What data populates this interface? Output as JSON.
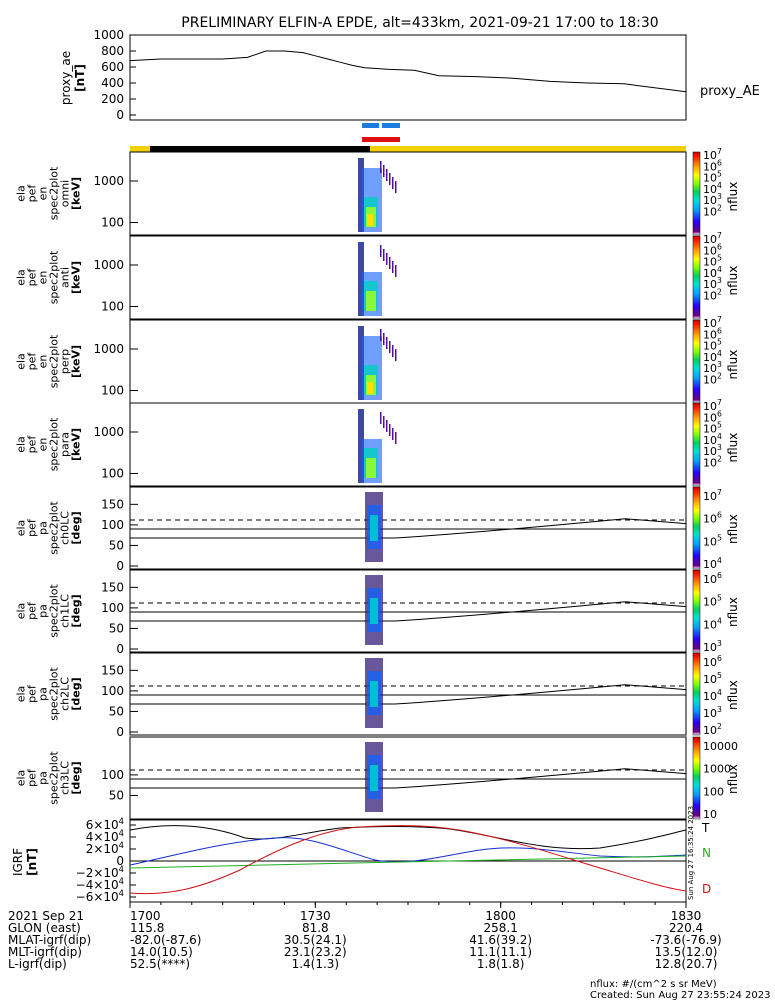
{
  "title": "PRELIMINARY ELFIN-A EPDE, alt=433km, 2021-09-21 17:00 to 18:30",
  "chart_data": {
    "type": "stacked-timeseries",
    "time_range": [
      "17:00",
      "18:30"
    ],
    "x_ticks": [
      "1700",
      "1730",
      "1800",
      "1830"
    ],
    "ae_panel": {
      "ylabel": "proxy_ae\n[nT]",
      "yticks": [
        "1000",
        "800",
        "600",
        "400",
        "200",
        "0"
      ],
      "ylim": [
        0,
        1000
      ],
      "legend": "proxy_AE",
      "t": [
        0,
        5,
        10,
        15,
        19,
        22,
        25,
        28,
        30,
        32,
        34,
        36,
        38,
        42,
        46,
        50,
        56,
        62,
        68,
        74,
        80,
        90
      ],
      "values": [
        680,
        700,
        700,
        700,
        720,
        800,
        800,
        780,
        740,
        700,
        660,
        620,
        590,
        570,
        560,
        490,
        480,
        460,
        420,
        400,
        390,
        290
      ]
    },
    "spectrograms": [
      {
        "label": "ela\npef\nen\nspec2plot\nomni\n[keV]",
        "ticks": [
          "1000",
          "100"
        ],
        "cb_max_exp": 7
      },
      {
        "label": "ela\npef\nen\nspec2plot\nanti\n[keV]",
        "ticks": [
          "1000",
          "100"
        ],
        "cb_max_exp": 7
      },
      {
        "label": "ela\npef\nen\nspec2plot\nperp\n[keV]",
        "ticks": [
          "1000",
          "100"
        ],
        "cb_max_exp": 7
      },
      {
        "label": "ela\npef\nen\nspec2plot\npara\n[keV]",
        "ticks": [
          "1000",
          "100"
        ],
        "cb_max_exp": 7
      }
    ],
    "pa_panels": [
      {
        "label": "ela\npef\npa\nspec2plot\nch0LC\n[deg]",
        "ticks": [
          "150",
          "100",
          "50",
          "0"
        ],
        "cb": [
          "10^7",
          "10^6",
          "10^5",
          "10^4"
        ]
      },
      {
        "label": "ela\npef\npa\nspec2plot\nch1LC\n[deg]",
        "ticks": [
          "150",
          "100",
          "50",
          "0"
        ],
        "cb": [
          "10^6",
          "10^5",
          "10^4",
          "10^3"
        ]
      },
      {
        "label": "ela\npef\npa\nspec2plot\nch2LC\n[deg]",
        "ticks": [
          "150",
          "100",
          "50",
          "0"
        ],
        "cb": [
          "10^6",
          "10^5",
          "10^4",
          "10^3",
          "10^2"
        ]
      },
      {
        "label": "ela\npef\npa\nspec2plot\nch3LC\n[deg]",
        "ticks": [
          "100",
          "50"
        ],
        "cb": [
          "10000",
          "1000",
          "100",
          "10"
        ]
      }
    ],
    "cb_label": "nflux",
    "igrf_panel": {
      "ylabel": "IGRF\n[nT]",
      "yticks": [
        "6×10^4",
        "4×10^4",
        "2×10^4",
        "0",
        "−2×10^4",
        "−4×10^4",
        "−6×10^4"
      ],
      "legend": [
        "T",
        "N",
        "D"
      ]
    },
    "footer_rows": [
      {
        "label": "2021 Sep 21",
        "values": [
          "1700",
          "1730",
          "1800",
          "1830"
        ]
      },
      {
        "label": "GLON (east)",
        "values": [
          "115.8",
          "81.8",
          "258.1",
          "220.4"
        ]
      },
      {
        "label": "MLAT-igrf(dip)",
        "values": [
          "-82.0(-87.6)",
          "30.5(24.1)",
          "41.6(39.2)",
          "-73.6(-76.9)"
        ]
      },
      {
        "label": "MLT-igrf(dip)",
        "values": [
          "14.0(10.5)",
          "23.1(23.2)",
          "11.1(11.1)",
          "13.5(12.0)"
        ]
      },
      {
        "label": "L-igrf(dip)",
        "values": [
          "52.5(****)",
          "1.4(1.3)",
          "1.8(1.8)",
          "12.8(20.7)"
        ]
      }
    ],
    "footer_note": "nflux: #/(cm^2 s sr MeV)",
    "created": "Created: Sun Aug 27 23:55:24 2023",
    "side_stamp": "Sun Aug 27 16:35:24 2023"
  }
}
